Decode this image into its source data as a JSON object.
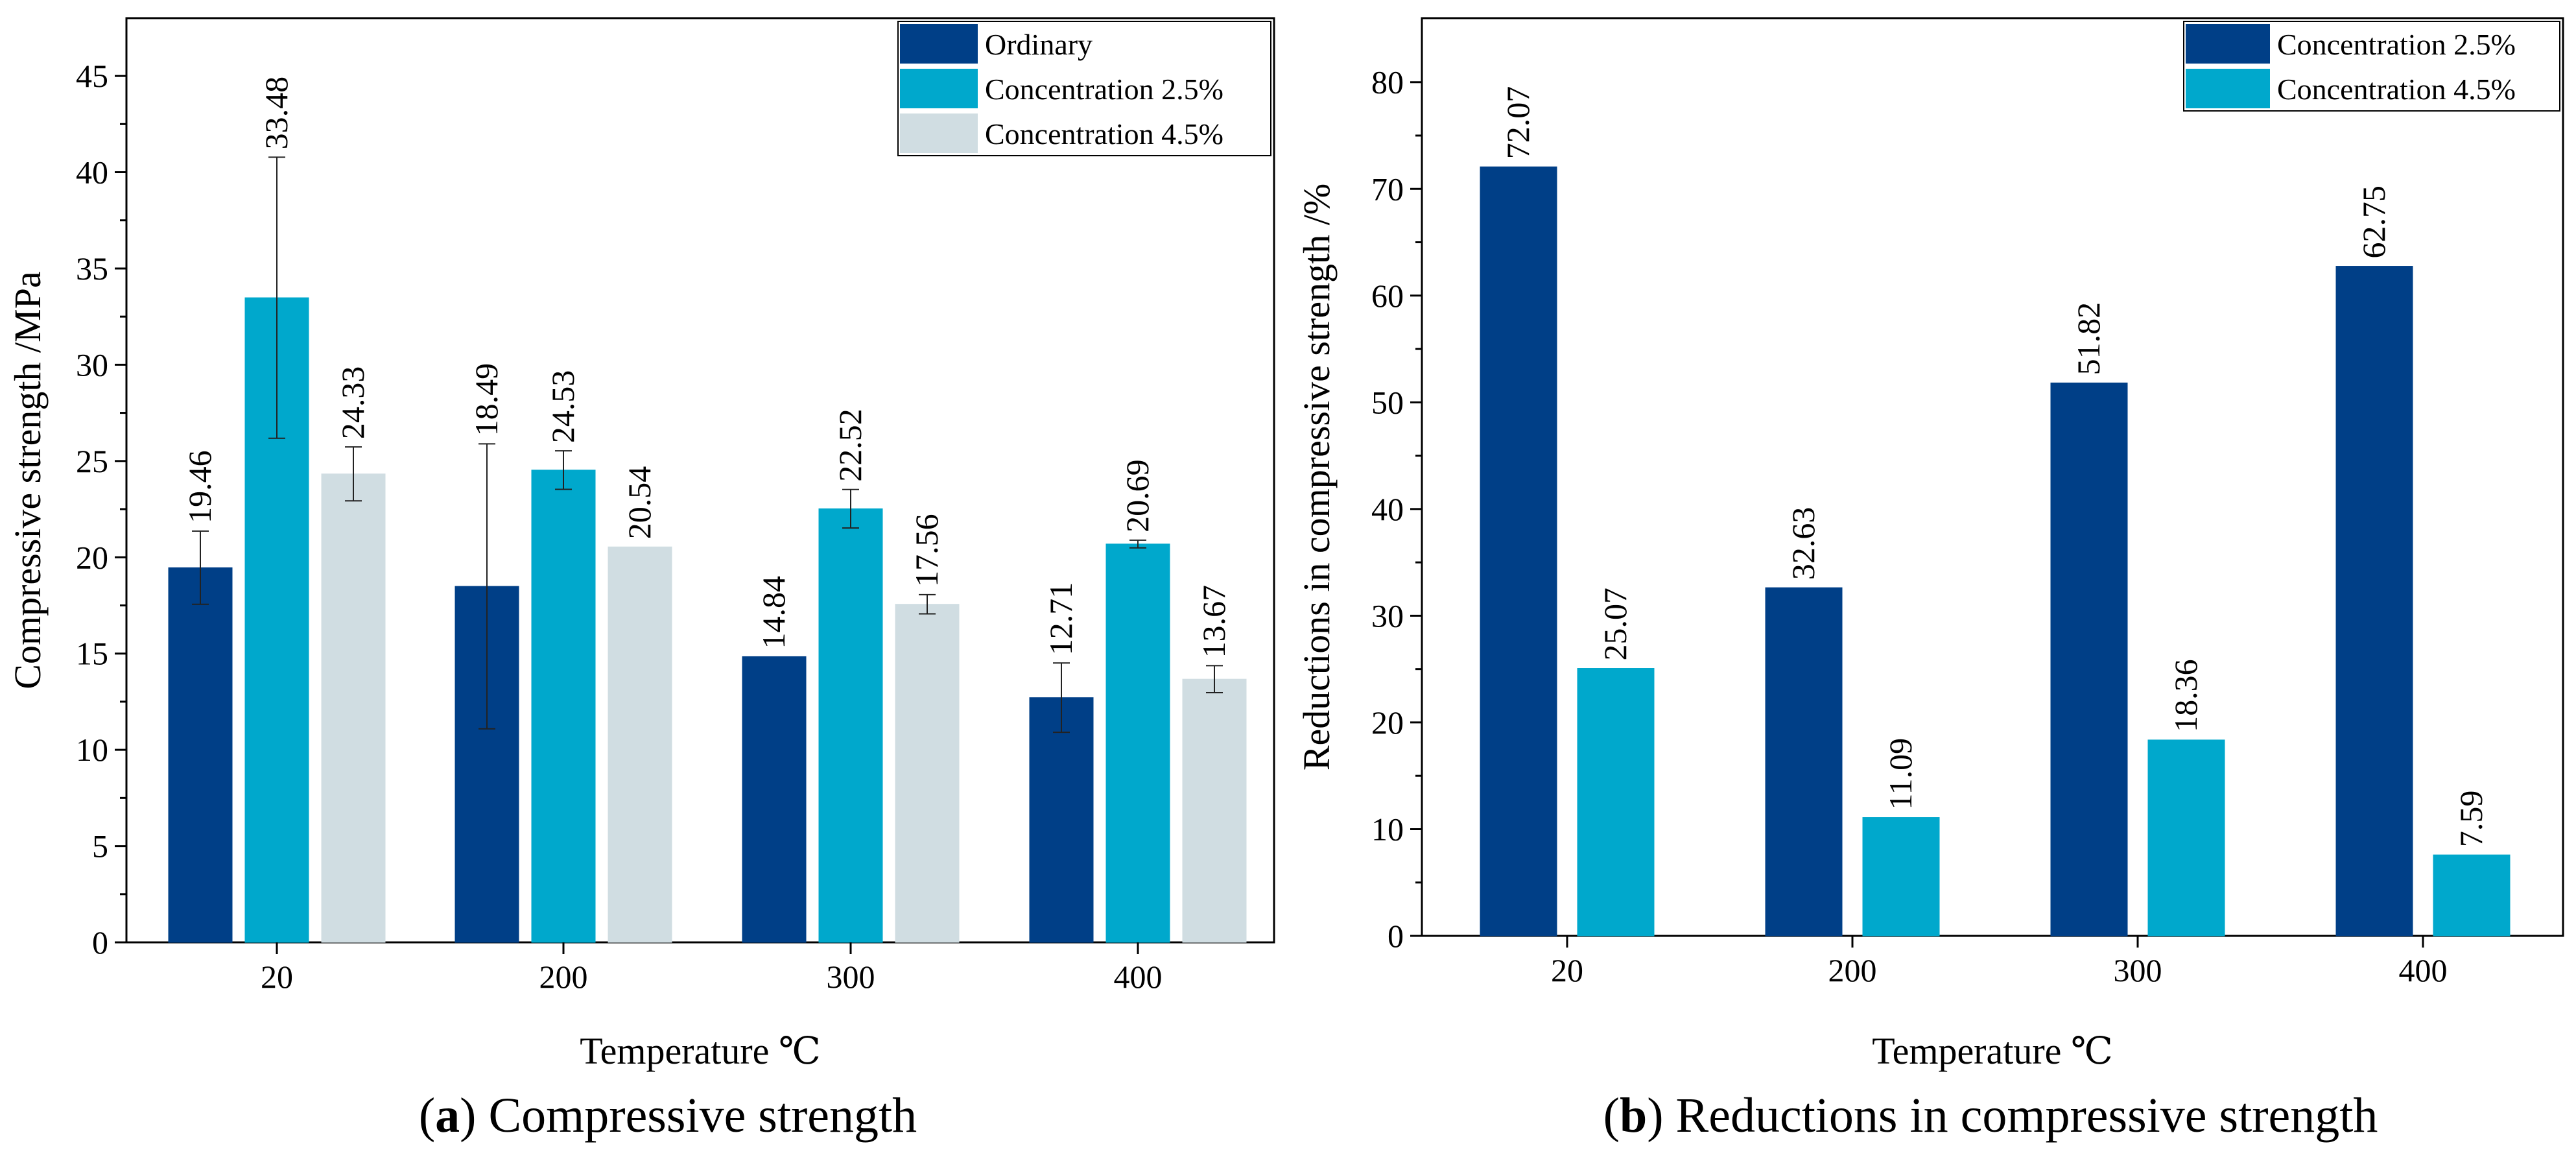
{
  "chart_data": [
    {
      "type": "bar",
      "panel_label": "a",
      "caption": " Compressive strength",
      "xlabel": "Temperature ℃",
      "ylabel": "Compressive strength /MPa",
      "ylim": [
        0,
        48
      ],
      "yticks": [
        0,
        5,
        10,
        15,
        20,
        25,
        30,
        35,
        40,
        45
      ],
      "categories": [
        "20",
        "200",
        "300",
        "400"
      ],
      "legend_position": "top-right",
      "series": [
        {
          "name": "Ordinary",
          "color": "#003f87",
          "values": [
            19.46,
            18.49,
            14.84,
            12.71
          ],
          "labels": [
            "19.46",
            "18.49",
            "14.84",
            "12.71"
          ],
          "errors": [
            1.9,
            7.4,
            0,
            1.8
          ]
        },
        {
          "name": "Concentration 2.5%",
          "color": "#00a8cc",
          "values": [
            33.48,
            24.53,
            22.52,
            20.69
          ],
          "labels": [
            "33.48",
            "24.53",
            "22.52",
            "20.69"
          ],
          "errors": [
            7.3,
            1.0,
            1.0,
            0.2
          ]
        },
        {
          "name": "Concentration 4.5%",
          "color": "#d0dde2",
          "values": [
            24.33,
            20.54,
            17.56,
            13.67
          ],
          "labels": [
            "24.33",
            "20.54",
            "17.56",
            "13.67"
          ],
          "errors": [
            1.4,
            0,
            0.5,
            0.7
          ]
        }
      ]
    },
    {
      "type": "bar",
      "panel_label": "b",
      "caption": " Reductions in compressive strength",
      "xlabel": "Temperature ℃",
      "ylabel": "Reductions in compressive strength /%",
      "ylim": [
        0,
        86
      ],
      "yticks": [
        0,
        10,
        20,
        30,
        40,
        50,
        60,
        70,
        80
      ],
      "categories": [
        "20",
        "200",
        "300",
        "400"
      ],
      "legend_position": "top-right",
      "series": [
        {
          "name": "Concentration 2.5%",
          "color": "#003f87",
          "values": [
            72.07,
            32.63,
            51.82,
            62.75
          ],
          "labels": [
            "72.07",
            "32.63",
            "51.82",
            "62.75"
          ],
          "errors": [
            0,
            0,
            0,
            0
          ]
        },
        {
          "name": "Concentration 4.5%",
          "color": "#00a8cc",
          "values": [
            25.07,
            11.09,
            18.36,
            7.59
          ],
          "labels": [
            "25.07",
            "11.09",
            "18.36",
            "7.59"
          ],
          "errors": [
            0,
            0,
            0,
            0
          ]
        }
      ]
    }
  ]
}
